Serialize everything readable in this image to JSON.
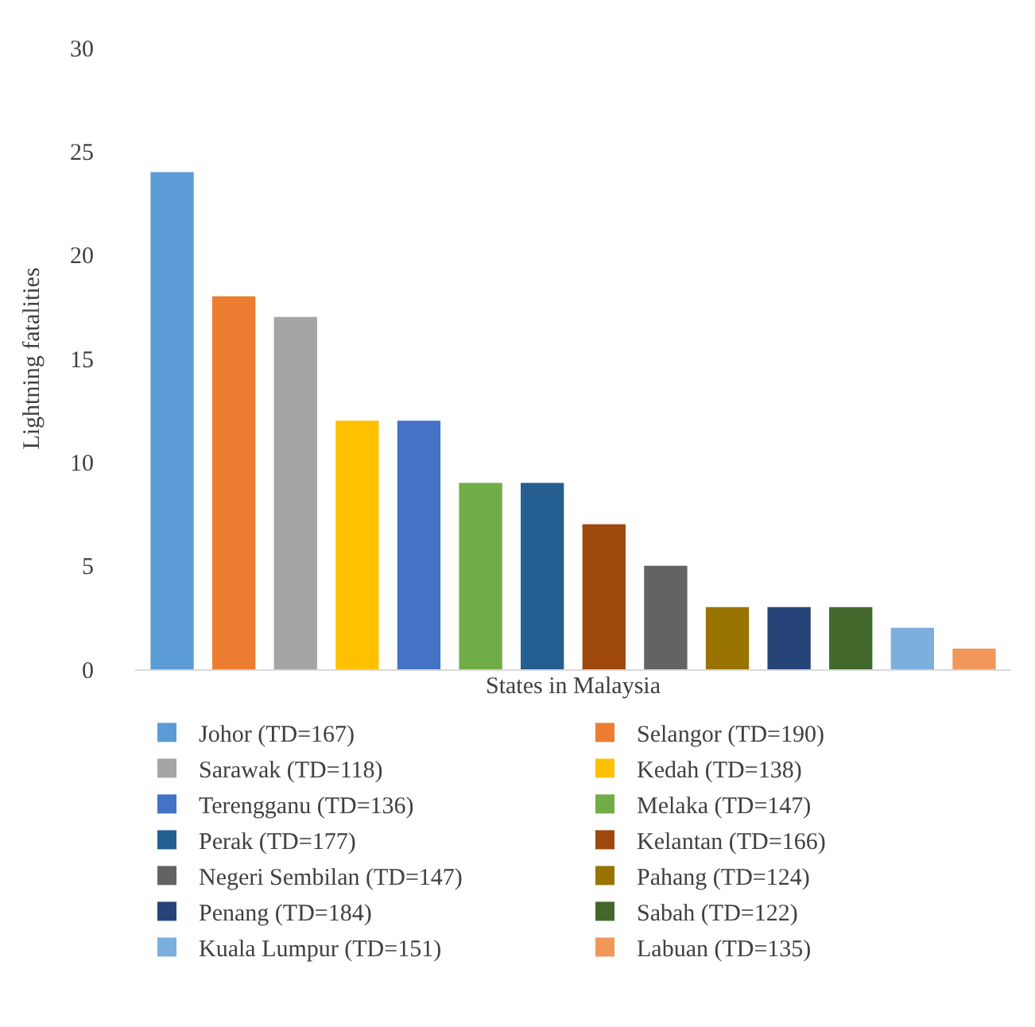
{
  "chart_data": {
    "type": "bar",
    "xlabel": "States in Malaysia",
    "ylabel": "Lightning fatalities",
    "categories": [
      null,
      null,
      null,
      null,
      null,
      null,
      null,
      null,
      null,
      null,
      null,
      null,
      null,
      null
    ],
    "series": [
      {
        "name": "Johor (TD=167)",
        "color": "#5b9bd5",
        "values": [
          24,
          null,
          null,
          null,
          null,
          null,
          null,
          null,
          null,
          null,
          null,
          null,
          null,
          null
        ]
      },
      {
        "name": "Selangor (TD=190)",
        "color": "#ed7d31",
        "values": [
          null,
          18,
          null,
          null,
          null,
          null,
          null,
          null,
          null,
          null,
          null,
          null,
          null,
          null
        ]
      },
      {
        "name": "Sarawak (TD=118)",
        "color": "#a5a5a5",
        "values": [
          null,
          null,
          17,
          null,
          null,
          null,
          null,
          null,
          null,
          null,
          null,
          null,
          null,
          null
        ]
      },
      {
        "name": "Kedah (TD=138)",
        "color": "#ffc000",
        "values": [
          null,
          null,
          null,
          12,
          null,
          null,
          null,
          null,
          null,
          null,
          null,
          null,
          null,
          null
        ]
      },
      {
        "name": "Terengganu (TD=136)",
        "color": "#4472c4",
        "values": [
          null,
          null,
          null,
          null,
          12,
          null,
          null,
          null,
          null,
          null,
          null,
          null,
          null,
          null
        ]
      },
      {
        "name": "Melaka (TD=147)",
        "color": "#70ad47",
        "values": [
          null,
          null,
          null,
          null,
          null,
          9,
          null,
          null,
          null,
          null,
          null,
          null,
          null,
          null
        ]
      },
      {
        "name": "Perak (TD=177)",
        "color": "#255e91",
        "values": [
          null,
          null,
          null,
          null,
          null,
          null,
          9,
          null,
          null,
          null,
          null,
          null,
          null,
          null
        ]
      },
      {
        "name": "Kelantan (TD=166)",
        "color": "#9e480e",
        "values": [
          null,
          null,
          null,
          null,
          null,
          null,
          null,
          7,
          null,
          null,
          null,
          null,
          null,
          null
        ]
      },
      {
        "name": "Negeri Sembilan (TD=147)",
        "color": "#636363",
        "values": [
          null,
          null,
          null,
          null,
          null,
          null,
          null,
          null,
          5,
          null,
          null,
          null,
          null,
          null
        ]
      },
      {
        "name": "Pahang (TD=124)",
        "color": "#997300",
        "values": [
          null,
          null,
          null,
          null,
          null,
          null,
          null,
          null,
          null,
          3,
          null,
          null,
          null,
          null
        ]
      },
      {
        "name": "Penang (TD=184)",
        "color": "#264478",
        "values": [
          null,
          null,
          null,
          null,
          null,
          null,
          null,
          null,
          null,
          null,
          3,
          null,
          null,
          null
        ]
      },
      {
        "name": "Sabah (TD=122)",
        "color": "#43682b",
        "values": [
          null,
          null,
          null,
          null,
          null,
          null,
          null,
          null,
          null,
          null,
          null,
          3,
          null,
          null
        ]
      },
      {
        "name": "Kuala Lumpur (TD=151)",
        "color": "#7cafdd",
        "values": [
          null,
          null,
          null,
          null,
          null,
          null,
          null,
          null,
          null,
          null,
          null,
          null,
          2,
          null
        ]
      },
      {
        "name": "Labuan (TD=135)",
        "color": "#f1975a",
        "values": [
          null,
          null,
          null,
          null,
          null,
          null,
          null,
          null,
          null,
          null,
          null,
          null,
          null,
          1
        ]
      }
    ],
    "ylim": [
      0,
      30
    ],
    "yticks": [
      0,
      5,
      10,
      15,
      20,
      25,
      30
    ],
    "grid": false,
    "legend": "bottom",
    "tick_labels": "y"
  }
}
